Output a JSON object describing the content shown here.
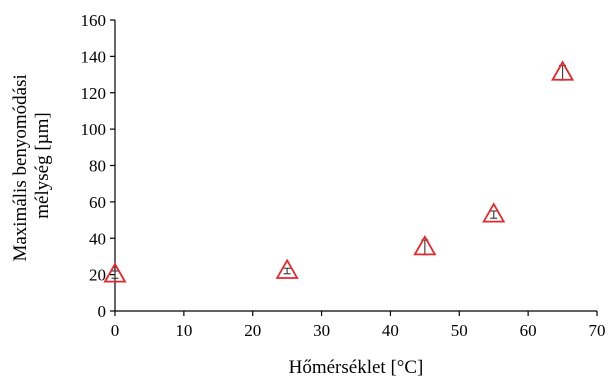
{
  "chart_data": {
    "type": "scatter",
    "title": "",
    "xlabel": "Hőmérséklet [°C]",
    "ylabel_lines": [
      "Maximális benyomódási",
      "mélység [µm]"
    ],
    "xlim": [
      0,
      70
    ],
    "ylim": [
      0,
      160
    ],
    "xticks": [
      0,
      10,
      20,
      30,
      40,
      50,
      60,
      70
    ],
    "yticks": [
      0,
      20,
      40,
      60,
      80,
      100,
      120,
      140,
      160
    ],
    "grid": false,
    "legend": "none",
    "marker": "triangle-open",
    "marker_color": "#e8262b",
    "errorbar_color": "#444444",
    "series": [
      {
        "points": [
          {
            "x": 0,
            "y": 20,
            "err": 2
          },
          {
            "x": 25,
            "y": 22,
            "err": 1.5
          },
          {
            "x": 45,
            "y": 35,
            "err": 4
          },
          {
            "x": 55,
            "y": 53,
            "err": 2
          },
          {
            "x": 65,
            "y": 131,
            "err": 4
          }
        ]
      }
    ]
  }
}
